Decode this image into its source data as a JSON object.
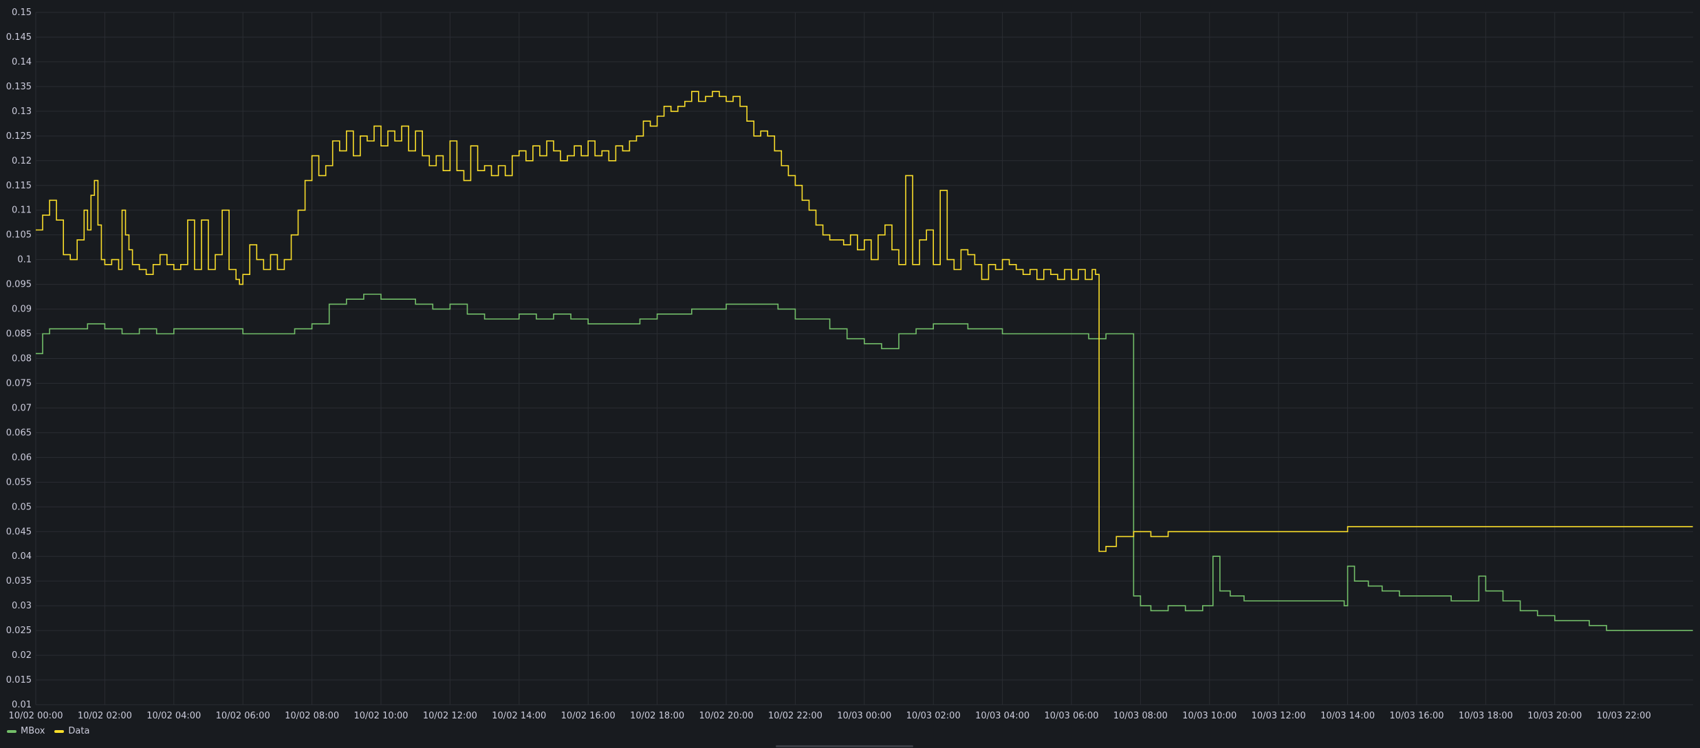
{
  "chart_data": {
    "type": "line",
    "interpolation": "step",
    "ylim": [
      0.01,
      0.15
    ],
    "grid": true,
    "legend_placement": "bottom-left",
    "yticks": [
      "0.01",
      "0.015",
      "0.02",
      "0.025",
      "0.03",
      "0.035",
      "0.04",
      "0.045",
      "0.05",
      "0.055",
      "0.06",
      "0.065",
      "0.07",
      "0.075",
      "0.08",
      "0.085",
      "0.09",
      "0.095",
      "0.1",
      "0.105",
      "0.11",
      "0.115",
      "0.12",
      "0.125",
      "0.13",
      "0.135",
      "0.14",
      "0.145",
      "0.15"
    ],
    "xticks": [
      "10/02 00:00",
      "10/02 02:00",
      "10/02 04:00",
      "10/02 06:00",
      "10/02 08:00",
      "10/02 10:00",
      "10/02 12:00",
      "10/02 14:00",
      "10/02 16:00",
      "10/02 18:00",
      "10/02 20:00",
      "10/02 22:00",
      "10/03 00:00",
      "10/03 02:00",
      "10/03 04:00",
      "10/03 06:00",
      "10/03 08:00",
      "10/03 10:00",
      "10/03 12:00",
      "10/03 14:00",
      "10/03 16:00",
      "10/03 18:00",
      "10/03 20:00",
      "10/03 22:00"
    ],
    "x_hours_per_tick": 2,
    "series": [
      {
        "name": "MBox",
        "color": "#73bf69",
        "points": [
          [
            0.0,
            0.081
          ],
          [
            0.2,
            0.085
          ],
          [
            0.4,
            0.086
          ],
          [
            1.0,
            0.086
          ],
          [
            1.5,
            0.087
          ],
          [
            2.0,
            0.086
          ],
          [
            2.5,
            0.085
          ],
          [
            3.0,
            0.086
          ],
          [
            3.5,
            0.085
          ],
          [
            4.0,
            0.086
          ],
          [
            5.0,
            0.086
          ],
          [
            6.0,
            0.085
          ],
          [
            7.0,
            0.085
          ],
          [
            7.5,
            0.086
          ],
          [
            8.0,
            0.087
          ],
          [
            8.5,
            0.091
          ],
          [
            9.0,
            0.092
          ],
          [
            9.5,
            0.093
          ],
          [
            10.0,
            0.092
          ],
          [
            10.5,
            0.092
          ],
          [
            11.0,
            0.091
          ],
          [
            11.5,
            0.09
          ],
          [
            12.0,
            0.091
          ],
          [
            12.5,
            0.089
          ],
          [
            13.0,
            0.088
          ],
          [
            14.0,
            0.089
          ],
          [
            14.5,
            0.088
          ],
          [
            15.0,
            0.089
          ],
          [
            15.5,
            0.088
          ],
          [
            16.0,
            0.087
          ],
          [
            17.0,
            0.087
          ],
          [
            17.5,
            0.088
          ],
          [
            18.0,
            0.089
          ],
          [
            19.0,
            0.09
          ],
          [
            20.0,
            0.091
          ],
          [
            21.0,
            0.091
          ],
          [
            21.5,
            0.09
          ],
          [
            22.0,
            0.088
          ],
          [
            23.0,
            0.086
          ],
          [
            23.5,
            0.084
          ],
          [
            24.0,
            0.083
          ],
          [
            24.5,
            0.082
          ],
          [
            25.0,
            0.085
          ],
          [
            25.5,
            0.086
          ],
          [
            26.0,
            0.087
          ],
          [
            26.5,
            0.087
          ],
          [
            27.0,
            0.086
          ],
          [
            28.0,
            0.085
          ],
          [
            29.0,
            0.085
          ],
          [
            30.0,
            0.085
          ],
          [
            30.5,
            0.084
          ],
          [
            31.0,
            0.085
          ],
          [
            31.5,
            0.085
          ],
          [
            31.7,
            0.085
          ],
          [
            31.8,
            0.032
          ],
          [
            32.0,
            0.03
          ],
          [
            32.3,
            0.029
          ],
          [
            32.8,
            0.03
          ],
          [
            33.3,
            0.029
          ],
          [
            33.8,
            0.03
          ],
          [
            34.0,
            0.03
          ],
          [
            34.1,
            0.04
          ],
          [
            34.3,
            0.033
          ],
          [
            34.6,
            0.032
          ],
          [
            35.0,
            0.031
          ],
          [
            36.0,
            0.031
          ],
          [
            37.0,
            0.031
          ],
          [
            37.9,
            0.03
          ],
          [
            38.0,
            0.038
          ],
          [
            38.2,
            0.035
          ],
          [
            38.6,
            0.034
          ],
          [
            39.0,
            0.033
          ],
          [
            39.5,
            0.032
          ],
          [
            40.0,
            0.032
          ],
          [
            41.0,
            0.031
          ],
          [
            41.7,
            0.031
          ],
          [
            41.8,
            0.036
          ],
          [
            42.0,
            0.033
          ],
          [
            42.5,
            0.031
          ],
          [
            43.0,
            0.029
          ],
          [
            43.5,
            0.028
          ],
          [
            44.0,
            0.027
          ],
          [
            45.0,
            0.026
          ],
          [
            45.5,
            0.025
          ],
          [
            46.0,
            0.025
          ],
          [
            47.0,
            0.025
          ],
          [
            48.0,
            0.025
          ]
        ]
      },
      {
        "name": "Data",
        "color": "#fade2a",
        "points": [
          [
            0.0,
            0.106
          ],
          [
            0.2,
            0.109
          ],
          [
            0.4,
            0.112
          ],
          [
            0.6,
            0.108
          ],
          [
            0.8,
            0.101
          ],
          [
            1.0,
            0.1
          ],
          [
            1.2,
            0.104
          ],
          [
            1.4,
            0.11
          ],
          [
            1.5,
            0.106
          ],
          [
            1.6,
            0.113
          ],
          [
            1.7,
            0.116
          ],
          [
            1.8,
            0.107
          ],
          [
            1.9,
            0.1
          ],
          [
            2.0,
            0.099
          ],
          [
            2.2,
            0.1
          ],
          [
            2.4,
            0.098
          ],
          [
            2.5,
            0.11
          ],
          [
            2.6,
            0.105
          ],
          [
            2.7,
            0.102
          ],
          [
            2.8,
            0.099
          ],
          [
            3.0,
            0.098
          ],
          [
            3.2,
            0.097
          ],
          [
            3.4,
            0.099
          ],
          [
            3.6,
            0.101
          ],
          [
            3.8,
            0.099
          ],
          [
            4.0,
            0.098
          ],
          [
            4.2,
            0.099
          ],
          [
            4.4,
            0.108
          ],
          [
            4.6,
            0.098
          ],
          [
            4.8,
            0.108
          ],
          [
            5.0,
            0.098
          ],
          [
            5.2,
            0.101
          ],
          [
            5.4,
            0.11
          ],
          [
            5.6,
            0.098
          ],
          [
            5.8,
            0.096
          ],
          [
            5.9,
            0.095
          ],
          [
            6.0,
            0.097
          ],
          [
            6.2,
            0.103
          ],
          [
            6.4,
            0.1
          ],
          [
            6.6,
            0.098
          ],
          [
            6.8,
            0.101
          ],
          [
            7.0,
            0.098
          ],
          [
            7.2,
            0.1
          ],
          [
            7.4,
            0.105
          ],
          [
            7.6,
            0.11
          ],
          [
            7.8,
            0.116
          ],
          [
            8.0,
            0.121
          ],
          [
            8.2,
            0.117
          ],
          [
            8.4,
            0.119
          ],
          [
            8.6,
            0.124
          ],
          [
            8.8,
            0.122
          ],
          [
            9.0,
            0.126
          ],
          [
            9.2,
            0.121
          ],
          [
            9.4,
            0.125
          ],
          [
            9.6,
            0.124
          ],
          [
            9.8,
            0.127
          ],
          [
            10.0,
            0.123
          ],
          [
            10.2,
            0.126
          ],
          [
            10.4,
            0.124
          ],
          [
            10.6,
            0.127
          ],
          [
            10.8,
            0.122
          ],
          [
            11.0,
            0.126
          ],
          [
            11.2,
            0.121
          ],
          [
            11.4,
            0.119
          ],
          [
            11.6,
            0.121
          ],
          [
            11.8,
            0.118
          ],
          [
            12.0,
            0.124
          ],
          [
            12.2,
            0.118
          ],
          [
            12.4,
            0.116
          ],
          [
            12.6,
            0.123
          ],
          [
            12.8,
            0.118
          ],
          [
            13.0,
            0.119
          ],
          [
            13.2,
            0.117
          ],
          [
            13.4,
            0.119
          ],
          [
            13.6,
            0.117
          ],
          [
            13.8,
            0.121
          ],
          [
            14.0,
            0.122
          ],
          [
            14.2,
            0.12
          ],
          [
            14.4,
            0.123
          ],
          [
            14.6,
            0.121
          ],
          [
            14.8,
            0.124
          ],
          [
            15.0,
            0.122
          ],
          [
            15.2,
            0.12
          ],
          [
            15.4,
            0.121
          ],
          [
            15.6,
            0.123
          ],
          [
            15.8,
            0.121
          ],
          [
            16.0,
            0.124
          ],
          [
            16.2,
            0.121
          ],
          [
            16.4,
            0.122
          ],
          [
            16.6,
            0.12
          ],
          [
            16.8,
            0.123
          ],
          [
            17.0,
            0.122
          ],
          [
            17.2,
            0.124
          ],
          [
            17.4,
            0.125
          ],
          [
            17.6,
            0.128
          ],
          [
            17.8,
            0.127
          ],
          [
            18.0,
            0.129
          ],
          [
            18.2,
            0.131
          ],
          [
            18.4,
            0.13
          ],
          [
            18.6,
            0.131
          ],
          [
            18.8,
            0.132
          ],
          [
            19.0,
            0.134
          ],
          [
            19.2,
            0.132
          ],
          [
            19.4,
            0.133
          ],
          [
            19.6,
            0.134
          ],
          [
            19.8,
            0.133
          ],
          [
            20.0,
            0.132
          ],
          [
            20.2,
            0.133
          ],
          [
            20.4,
            0.131
          ],
          [
            20.6,
            0.128
          ],
          [
            20.8,
            0.125
          ],
          [
            21.0,
            0.126
          ],
          [
            21.2,
            0.125
          ],
          [
            21.4,
            0.122
          ],
          [
            21.6,
            0.119
          ],
          [
            21.8,
            0.117
          ],
          [
            22.0,
            0.115
          ],
          [
            22.2,
            0.112
          ],
          [
            22.4,
            0.11
          ],
          [
            22.6,
            0.107
          ],
          [
            22.8,
            0.105
          ],
          [
            23.0,
            0.104
          ],
          [
            23.2,
            0.104
          ],
          [
            23.4,
            0.103
          ],
          [
            23.6,
            0.105
          ],
          [
            23.8,
            0.102
          ],
          [
            24.0,
            0.104
          ],
          [
            24.2,
            0.1
          ],
          [
            24.4,
            0.105
          ],
          [
            24.6,
            0.107
          ],
          [
            24.8,
            0.102
          ],
          [
            25.0,
            0.099
          ],
          [
            25.2,
            0.117
          ],
          [
            25.4,
            0.099
          ],
          [
            25.6,
            0.104
          ],
          [
            25.8,
            0.106
          ],
          [
            26.0,
            0.099
          ],
          [
            26.2,
            0.114
          ],
          [
            26.4,
            0.1
          ],
          [
            26.6,
            0.098
          ],
          [
            26.8,
            0.102
          ],
          [
            27.0,
            0.101
          ],
          [
            27.2,
            0.099
          ],
          [
            27.4,
            0.096
          ],
          [
            27.6,
            0.099
          ],
          [
            27.8,
            0.098
          ],
          [
            28.0,
            0.1
          ],
          [
            28.2,
            0.099
          ],
          [
            28.4,
            0.098
          ],
          [
            28.6,
            0.097
          ],
          [
            28.8,
            0.098
          ],
          [
            29.0,
            0.096
          ],
          [
            29.2,
            0.098
          ],
          [
            29.4,
            0.097
          ],
          [
            29.6,
            0.096
          ],
          [
            29.8,
            0.098
          ],
          [
            30.0,
            0.096
          ],
          [
            30.2,
            0.098
          ],
          [
            30.4,
            0.096
          ],
          [
            30.6,
            0.098
          ],
          [
            30.7,
            0.097
          ],
          [
            30.8,
            0.041
          ],
          [
            31.0,
            0.042
          ],
          [
            31.3,
            0.044
          ],
          [
            31.8,
            0.045
          ],
          [
            32.3,
            0.044
          ],
          [
            32.8,
            0.045
          ],
          [
            33.3,
            0.045
          ],
          [
            34.0,
            0.045
          ],
          [
            35.0,
            0.045
          ],
          [
            37.0,
            0.045
          ],
          [
            38.0,
            0.046
          ],
          [
            40.0,
            0.046
          ],
          [
            42.0,
            0.046
          ],
          [
            44.0,
            0.046
          ],
          [
            46.0,
            0.046
          ],
          [
            48.0,
            0.046
          ]
        ]
      }
    ]
  }
}
